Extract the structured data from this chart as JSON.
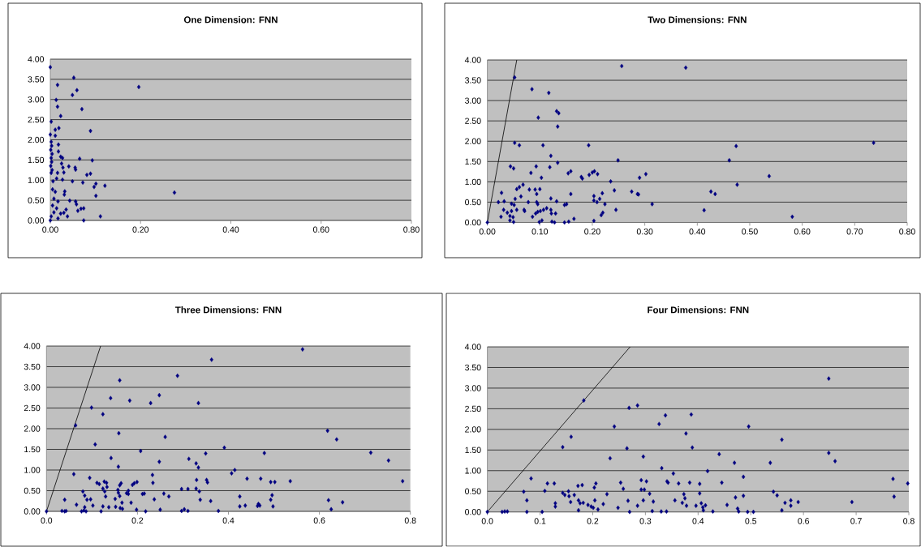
{
  "chart_data": [
    {
      "type": "scatter",
      "title": "One Dimension: FNN",
      "xlim": [
        0,
        0.8
      ],
      "ylim": [
        0,
        4
      ],
      "grid": "y",
      "marker": "diamond",
      "xticks": [
        {
          "value": 0,
          "label": "0.00"
        },
        {
          "value": 0.2,
          "label": "0.20"
        },
        {
          "value": 0.4,
          "label": "0.40"
        },
        {
          "value": 0.6,
          "label": "0.60"
        },
        {
          "value": 0.8,
          "label": "0.80"
        }
      ],
      "yticks": [
        {
          "value": 0,
          "label": "0.00"
        },
        {
          "value": 0.5,
          "label": "0.50"
        },
        {
          "value": 1,
          "label": "1.00"
        },
        {
          "value": 1.5,
          "label": "1.50"
        },
        {
          "value": 2,
          "label": "2.00"
        },
        {
          "value": 2.5,
          "label": "2.50"
        },
        {
          "value": 3,
          "label": "3.00"
        },
        {
          "value": 3.5,
          "label": "3.50"
        },
        {
          "value": 4,
          "label": "4.00"
        }
      ],
      "series": [
        {
          "type": "scatter",
          "color": "#000080",
          "x": [
            0,
            0.052,
            0.016,
            0.059,
            0.049,
            0.013,
            0.016,
            0.07,
            0.023,
            0.002,
            0.089,
            0.019,
            0.011,
            0,
            0.011,
            0.002,
            0.003,
            0.001,
            0.004,
            0.002,
            0.003,
            0.001,
            0.004,
            0.002,
            0.018,
            0.018,
            0.023,
            0.027,
            0.065,
            0.093,
            0.025,
            0.028,
            0.041,
            0.055,
            0.056,
            0.016,
            0.03,
            0.081,
            0.089,
            0.006,
            0.014,
            0.027,
            0.049,
            0.072,
            0.101,
            0.097,
            0.121,
            0.101,
            0.032,
            0.031,
            0.005,
            0.011,
            0.008,
            0.017,
            0.005,
            0.014,
            0.008,
            0.023,
            0.002,
            0.017,
            0,
            0.043,
            0.056,
            0.058,
            0.035,
            0.038,
            0.061,
            0.068,
            0.074,
            0.074,
            0.111,
            0.03,
            0.196,
            0.275
          ],
          "values": [
            3.8,
            3.54,
            3.36,
            3.23,
            3.11,
            2.99,
            2.82,
            2.76,
            2.59,
            2.45,
            2.22,
            2.29,
            2.25,
            2.13,
            2.1,
            1.95,
            1.85,
            1.75,
            1.65,
            1.55,
            1.45,
            1.35,
            1.25,
            1.18,
            1.88,
            1.71,
            1.58,
            1.55,
            1.53,
            1.49,
            1.41,
            1.31,
            1.34,
            1.31,
            1.26,
            1.18,
            1.19,
            1.13,
            1.16,
            0.97,
            1.04,
            1.01,
            0.97,
            0.94,
            0.91,
            0.83,
            0.86,
            0.61,
            0.72,
            0.64,
            0.77,
            0.71,
            0.54,
            0.47,
            0.37,
            0.3,
            0.2,
            0.17,
            0.1,
            0.05,
            0,
            0.49,
            0.47,
            0.4,
            0.27,
            0.1,
            0.24,
            0.29,
            0.3,
            0,
            0.1,
            0.19,
            3.31,
            0.69
          ]
        }
      ]
    },
    {
      "type": "scatter",
      "title": "Two Dimensions: FNN",
      "xlim": [
        0,
        0.8
      ],
      "ylim": [
        0,
        4
      ],
      "grid": "y",
      "marker": "diamond",
      "xticks": [
        {
          "value": 0,
          "label": "0.00"
        },
        {
          "value": 0.1,
          "label": "0.10"
        },
        {
          "value": 0.2,
          "label": "0.20"
        },
        {
          "value": 0.3,
          "label": "0.30"
        },
        {
          "value": 0.4,
          "label": "0.40"
        },
        {
          "value": 0.5,
          "label": "0.50"
        },
        {
          "value": 0.6,
          "label": "0.60"
        },
        {
          "value": 0.7,
          "label": "0.70"
        },
        {
          "value": 0.8,
          "label": "0.80"
        }
      ],
      "yticks": [
        {
          "value": 0,
          "label": "0.00"
        },
        {
          "value": 0.5,
          "label": "0.50"
        },
        {
          "value": 1,
          "label": "1.00"
        },
        {
          "value": 1.5,
          "label": "1.50"
        },
        {
          "value": 2,
          "label": "2.00"
        },
        {
          "value": 2.5,
          "label": "2.50"
        },
        {
          "value": 3,
          "label": "3.00"
        },
        {
          "value": 3.5,
          "label": "3.50"
        },
        {
          "value": 4,
          "label": "4.00"
        }
      ],
      "series": [
        {
          "type": "scatter",
          "color": "#000080",
          "x": [
            0,
            0.052,
            0.256,
            0.378,
            0.085,
            0.117,
            0.132,
            0.136,
            0.097,
            0.134,
            0.736,
            0.052,
            0.061,
            0.106,
            0.193,
            0.474,
            0.121,
            0.461,
            0.249,
            0.044,
            0.05,
            0.093,
            0.119,
            0.134,
            0.083,
            0.103,
            0.154,
            0.159,
            0.179,
            0.181,
            0.194,
            0.2,
            0.204,
            0.21,
            0.235,
            0.29,
            0.302,
            0.537,
            0.476,
            0.426,
            0.434,
            0.275,
            0.286,
            0.288,
            0.242,
            0.027,
            0.061,
            0.068,
            0.056,
            0.08,
            0.091,
            0.094,
            0.1,
            0.159,
            0.064,
            0.053,
            0.021,
            0.032,
            0.078,
            0.07,
            0.071,
            0.046,
            0.051,
            0.031,
            0.038,
            0.043,
            0.049,
            0.026,
            0.043,
            0.05,
            0.046,
            0.056,
            0.086,
            0.092,
            0.096,
            0.094,
            0.096,
            0.101,
            0.107,
            0.113,
            0.121,
            0.121,
            0.122,
            0.132,
            0.13,
            0.099,
            0.104,
            0.123,
            0.128,
            0.147,
            0.151,
            0.147,
            0.155,
            0.165,
            0.203,
            0.203,
            0.209,
            0.214,
            0.224,
            0.219,
            0.22,
            0.217,
            0.203,
            0.245,
            0.314,
            0.413,
            0.581
          ],
          "values": [
            0,
            3.57,
            3.85,
            3.81,
            3.28,
            3.19,
            2.74,
            2.69,
            2.58,
            2.36,
            1.96,
            1.96,
            1.9,
            1.9,
            1.9,
            1.88,
            1.64,
            1.53,
            1.53,
            1.38,
            1.33,
            1.38,
            1.36,
            1.47,
            1.22,
            1.1,
            1.21,
            1.26,
            1.12,
            1.08,
            1.17,
            1.23,
            1.26,
            1.19,
            1.01,
            1.1,
            1.19,
            1.14,
            0.93,
            0.76,
            0.7,
            0.76,
            0.7,
            0.69,
            0.79,
            0.73,
            0.87,
            0.93,
            0.82,
            0.81,
            0.81,
            0.7,
            0.82,
            0.7,
            0.64,
            0.58,
            0.5,
            0.52,
            0.5,
            0.31,
            0.28,
            0.46,
            0.43,
            0.31,
            0.24,
            0.16,
            0.13,
            0.14,
            0.05,
            0.01,
            0.28,
            0.31,
            0.14,
            0.22,
            0.26,
            0.5,
            0.45,
            0.28,
            0.31,
            0.35,
            0.59,
            0.31,
            0.22,
            0.52,
            0.22,
            0.01,
            0.05,
            0.02,
            0,
            0.43,
            0.45,
            0,
            0.02,
            0.09,
            0.65,
            0.54,
            0.5,
            0.58,
            0.45,
            0.72,
            0.24,
            0.18,
            0.04,
            0.31,
            0.45,
            0.3,
            0.14
          ]
        },
        {
          "type": "line",
          "marker": "none",
          "color": "#000000",
          "x": [
            0,
            0.056
          ],
          "values": [
            0,
            4
          ]
        }
      ]
    },
    {
      "type": "scatter",
      "title": "Three Dimensions: FNN",
      "xlim": [
        0,
        0.8
      ],
      "ylim": [
        0,
        4
      ],
      "grid": "y",
      "marker": "diamond",
      "xticks": [
        {
          "value": 0,
          "label": "0.0"
        },
        0.2,
        0.4,
        0.6,
        0.8
      ],
      "yticks": [
        {
          "value": 0,
          "label": "0.00"
        },
        {
          "value": 0.5,
          "label": "0.50"
        },
        {
          "value": 1,
          "label": "1.00"
        },
        {
          "value": 1.5,
          "label": "1.50"
        },
        {
          "value": 2,
          "label": "2.00"
        },
        {
          "value": 2.5,
          "label": "2.50"
        },
        {
          "value": 3,
          "label": "3.00"
        },
        {
          "value": 3.5,
          "label": "3.50"
        },
        {
          "value": 4,
          "label": "4.00"
        }
      ],
      "series": [
        {
          "type": "scatter",
          "color": "#000080",
          "x": [
            0.563,
            0.363,
            0.288,
            0.161,
            0.248,
            0.141,
            0.183,
            0.229,
            0.334,
            0.099,
            0.124,
            0.064,
            0.618,
            0.159,
            0.638,
            0.261,
            0.107,
            0.391,
            0.207,
            0.713,
            0.479,
            0.35,
            0.142,
            0.313,
            0.752,
            0.248,
            0.329,
            0.334,
            0.158,
            0.414,
            0.407,
            0.06,
            0.233,
            0.095,
            0.441,
            0.471,
            0.33,
            0.352,
            0.354,
            0.536,
            0.783,
            0.493,
            0.502,
            0.199,
            0.193,
            0.189,
            0.111,
            0.116,
            0.127,
            0.132,
            0.164,
            0.161,
            0.234,
            0.133,
            0.124,
            0.128,
            0.157,
            0.158,
            0.18,
            0.176,
            0.18,
            0.297,
            0.311,
            0.329,
            0.336,
            0.211,
            0.215,
            0.258,
            0.269,
            0.08,
            0.084,
            0.089,
            0.097,
            0.04,
            0.066,
            0.102,
            0.13,
            0.151,
            0.161,
            0.186,
            0.166,
            0.237,
            0.338,
            0.361,
            0.425,
            0.496,
            0.493,
            0.62,
            0.651,
            0.466,
            0.464,
            0.469,
            0.425,
            0.437,
            0.498,
            0.124,
            0.137,
            0.152,
            0.162,
            0.167,
            0,
            0.034,
            0.04,
            0.043,
            0.077,
            0.082,
            0.087,
            0.084,
            0.12,
            0.198,
            0.218,
            0.25,
            0.297,
            0.303,
            0.311,
            0.378,
            0.626
          ],
          "values": [
            3.92,
            3.67,
            3.28,
            3.17,
            2.81,
            2.74,
            2.68,
            2.62,
            2.62,
            2.51,
            2.35,
            2.08,
            1.95,
            1.89,
            1.74,
            1.8,
            1.62,
            1.54,
            1.46,
            1.42,
            1.41,
            1.4,
            1.29,
            1.27,
            1.23,
            1.2,
            1.16,
            1.06,
            1.08,
            1.0,
            0.92,
            0.9,
            0.88,
            0.81,
            0.79,
            0.79,
            0.76,
            0.76,
            0.7,
            0.73,
            0.73,
            0.71,
            0.71,
            0.71,
            0.68,
            0.64,
            0.69,
            0.66,
            0.72,
            0.69,
            0.68,
            0.63,
            0.69,
            0.59,
            0.55,
            0.48,
            0.52,
            0.45,
            0.5,
            0.44,
            0.42,
            0.54,
            0.54,
            0.55,
            0.48,
            0.42,
            0.43,
            0.43,
            0.36,
            0.48,
            0.38,
            0.28,
            0.29,
            0.28,
            0.16,
            0.14,
            0.36,
            0.3,
            0.37,
            0.21,
            0.21,
            0.29,
            0.28,
            0.25,
            0.36,
            0.39,
            0.28,
            0.27,
            0.22,
            0.18,
            0.13,
            0.14,
            0.12,
            0.14,
            0.12,
            0.12,
            0.1,
            0.11,
            0.08,
            0.06,
            0,
            0.01,
            0,
            0.01,
            0,
            0.02,
            0,
            0.1,
            0,
            0.04,
            0,
            0.04,
            0.01,
            0.05,
            0.01,
            0.01,
            0.05
          ]
        },
        {
          "type": "line",
          "marker": "none",
          "color": "#000000",
          "x": [
            0,
            0.119
          ],
          "values": [
            0,
            4
          ]
        }
      ]
    },
    {
      "type": "scatter",
      "title": "Four Dimensions: FNN",
      "xlim": [
        0,
        0.8
      ],
      "ylim": [
        0,
        4
      ],
      "grid": "y",
      "marker": "diamond",
      "xticks": [
        {
          "value": 0,
          "label": "0.0"
        },
        0.1,
        0.2,
        0.3,
        0.4,
        0.5,
        0.6,
        0.7,
        0.8
      ],
      "yticks": [
        {
          "value": 0,
          "label": "0.00"
        },
        {
          "value": 0.5,
          "label": "0.50"
        },
        {
          "value": 1,
          "label": "1.00"
        },
        {
          "value": 1.5,
          "label": "1.50"
        },
        {
          "value": 2,
          "label": "2.00"
        },
        {
          "value": 2.5,
          "label": "2.50"
        },
        {
          "value": 3,
          "label": "3.00"
        },
        {
          "value": 3.5,
          "label": "3.50"
        },
        {
          "value": 4,
          "label": "4.00"
        }
      ],
      "series": [
        {
          "type": "scatter",
          "color": "#000080",
          "x": [
            0.648,
            0.183,
            0.285,
            0.269,
            0.338,
            0.387,
            0.326,
            0.241,
            0.496,
            0.377,
            0.159,
            0.559,
            0.143,
            0.265,
            0.389,
            0.648,
            0.44,
            0.296,
            0.233,
            0.66,
            0.469,
            0.537,
            0.331,
            0.418,
            0.353,
            0.486,
            0.083,
            0.77,
            0.798,
            0.114,
            0.127,
            0.206,
            0.253,
            0.292,
            0.302,
            0.341,
            0.343,
            0.363,
            0.384,
            0.403,
            0.445,
            0.069,
            0.109,
            0.258,
            0.292,
            0.298,
            0.203,
            0.18,
            0.172,
            0.143,
            0.147,
            0.154,
            0.155,
            0.158,
            0.165,
            0.173,
            0.176,
            0.182,
            0.173,
            0.191,
            0.197,
            0.201,
            0.204,
            0.21,
            0.22,
            0.227,
            0.248,
            0.267,
            0.308,
            0.296,
            0.315,
            0.313,
            0.33,
            0.34,
            0.356,
            0.37,
            0.373,
            0.375,
            0.378,
            0.403,
            0.396,
            0.406,
            0.409,
            0.414,
            0.41,
            0.428,
            0.455,
            0.471,
            0.486,
            0.475,
            0.477,
            0.494,
            0.505,
            0.543,
            0.55,
            0.559,
            0.565,
            0.576,
            0.576,
            0.59,
            0.692,
            0.772,
            0.075,
            0.075,
            0.104,
            0.028,
            0.033,
            0.038,
            0,
            0.129,
            0.129,
            0.27,
            0.285
          ],
          "values": [
            3.23,
            2.7,
            2.58,
            2.52,
            2.34,
            2.36,
            2.13,
            2.07,
            2.07,
            1.9,
            1.82,
            1.75,
            1.57,
            1.54,
            1.56,
            1.43,
            1.4,
            1.34,
            1.3,
            1.23,
            1.19,
            1.19,
            1.06,
            0.99,
            0.93,
            0.85,
            0.81,
            0.8,
            0.69,
            0.69,
            0.69,
            0.69,
            0.71,
            0.77,
            0.74,
            0.74,
            0.71,
            0.69,
            0.71,
            0.68,
            0.71,
            0.49,
            0.51,
            0.56,
            0.54,
            0.54,
            0.59,
            0.65,
            0.63,
            0.46,
            0.41,
            0.5,
            0.38,
            0.24,
            0.41,
            0.28,
            0.21,
            0.22,
            0.04,
            0.17,
            0.13,
            0.1,
            0.28,
            0.06,
            0.19,
            0.43,
            0.1,
            0.27,
            0.44,
            0.28,
            0.25,
            0.02,
            0.01,
            0.01,
            0.28,
            0.22,
            0.43,
            0.33,
            0.15,
            0.45,
            0.15,
            0.21,
            0.11,
            0.16,
            0.04,
            0.01,
            0.17,
            0.35,
            0.39,
            0.08,
            0.01,
            0,
            0,
            0.49,
            0.4,
            0.04,
            0.22,
            0.28,
            0.15,
            0.24,
            0.24,
            0.37,
            0.28,
            0,
            0,
            0,
            0.01,
            0.01,
            0,
            0.13,
            0.21,
            0,
            0.15
          ]
        },
        {
          "type": "line",
          "marker": "none",
          "color": "#000000",
          "x": [
            0,
            0.271
          ],
          "values": [
            0,
            4
          ]
        }
      ]
    }
  ]
}
